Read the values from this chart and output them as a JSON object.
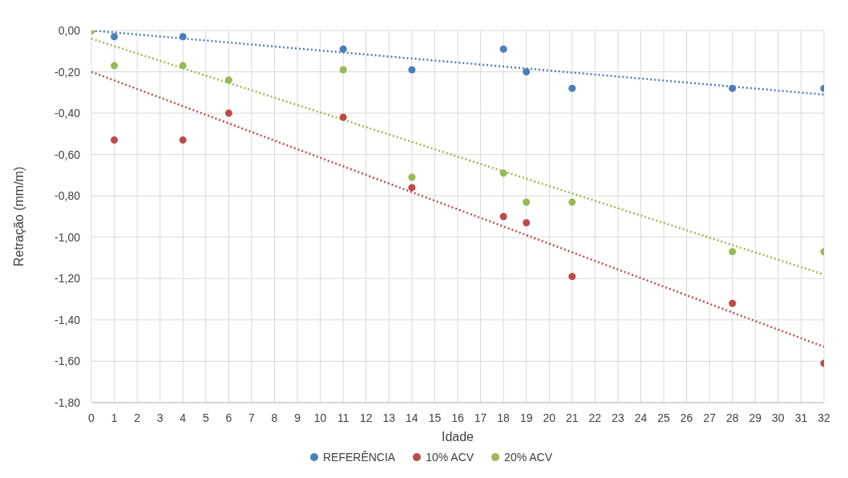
{
  "chart_data": {
    "type": "scatter",
    "xlabel": "Idade",
    "ylabel": "Retração (mm/m)",
    "x": [
      0,
      1,
      4,
      6,
      11,
      14,
      18,
      19,
      21,
      28,
      32
    ],
    "series": [
      {
        "name": "REFERÊNCIA",
        "color": "#4a7ebb",
        "x": [
          0,
          1,
          4,
          11,
          14,
          18,
          19,
          21,
          28,
          32
        ],
        "values": [
          0,
          -0.03,
          -0.03,
          -0.09,
          -0.19,
          -0.09,
          -0.2,
          -0.28,
          -0.28,
          -0.28
        ]
      },
      {
        "name": "10% ACV",
        "color": "#be4b48",
        "values": [
          0,
          -0.53,
          -0.53,
          -0.4,
          -0.42,
          -0.76,
          -0.9,
          -0.93,
          -1.19,
          -1.32,
          -1.61
        ]
      },
      {
        "name": "20% ACV",
        "color": "#98b954",
        "values": [
          0,
          -0.17,
          -0.17,
          -0.24,
          -0.19,
          -0.71,
          -0.69,
          -0.83,
          -0.83,
          -1.07,
          -1.07
        ]
      },
      {
        "type": "line",
        "color": "#4a7ebb",
        "x": [
          0,
          32
        ],
        "values": [
          0,
          -0.31
        ],
        "line_style": "dotted",
        "marker": "none"
      },
      {
        "type": "line",
        "color": "#be4b48",
        "x": [
          0,
          32
        ],
        "values": [
          -0.2,
          -1.53
        ],
        "line_style": "dotted",
        "marker": "none"
      },
      {
        "type": "line",
        "color": "#98b954",
        "x": [
          0,
          32
        ],
        "values": [
          -0.04,
          -1.18
        ],
        "line_style": "dotted",
        "marker": "none"
      }
    ],
    "xlim": [
      0,
      32
    ],
    "xticks": [
      0,
      1,
      2,
      3,
      4,
      5,
      6,
      7,
      8,
      9,
      10,
      11,
      12,
      13,
      14,
      15,
      16,
      17,
      18,
      19,
      20,
      21,
      22,
      23,
      24,
      25,
      26,
      27,
      28,
      29,
      30,
      31,
      32
    ],
    "ylim": [
      -1.8,
      0
    ],
    "yticks": [
      {
        "value": -1.8,
        "label": "-1,80"
      },
      {
        "value": -1.6,
        "label": "-1,60"
      },
      {
        "value": -1.4,
        "label": "-1,40"
      },
      {
        "value": -1.2,
        "label": "-1,20"
      },
      {
        "value": -1,
        "label": "-1,00"
      },
      {
        "value": -0.8,
        "label": "-0,80"
      },
      {
        "value": -0.6,
        "label": "-0,60"
      },
      {
        "value": -0.4,
        "label": "-0,40"
      },
      {
        "value": -0.2,
        "label": "-0,20"
      },
      {
        "value": 0,
        "label": "0,00"
      }
    ],
    "grid": true,
    "legend": "bottom",
    "marker": "circle"
  }
}
